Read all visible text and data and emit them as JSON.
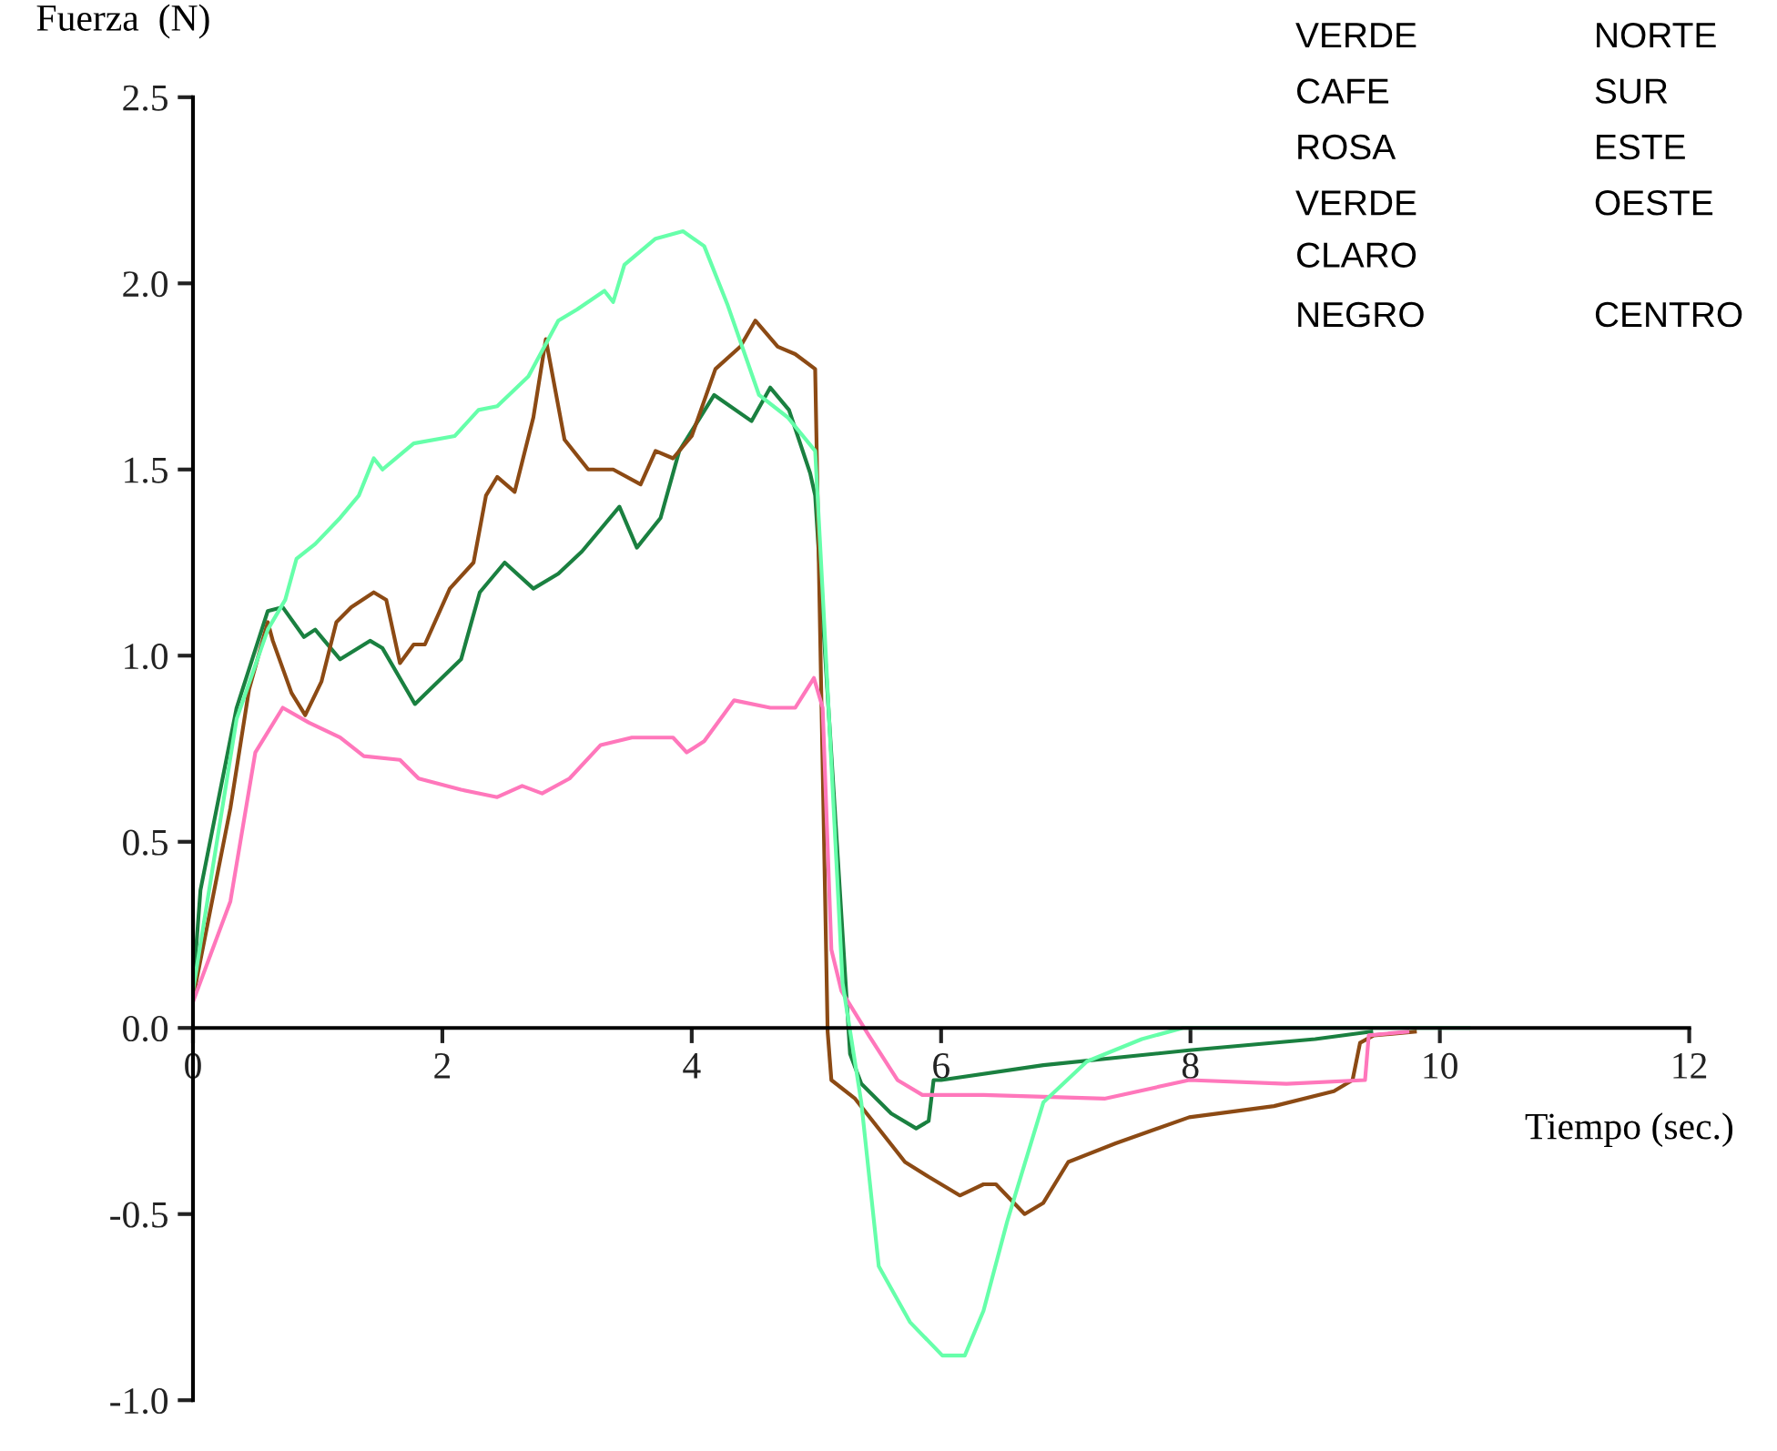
{
  "chart_data": {
    "type": "line",
    "xlabel": "Tiempo (sec.)",
    "ylabel": "Fuerza  (N)",
    "xlim": [
      0,
      12
    ],
    "ylim": [
      -1.0,
      2.5
    ],
    "xticks": [
      0,
      2,
      4,
      6,
      8,
      10,
      12
    ],
    "yticks": [
      {
        "value": -1.0,
        "label": "-1.0"
      },
      {
        "value": -0.5,
        "label": "-0.5"
      },
      {
        "value": 0.0,
        "label": "0.0"
      },
      {
        "value": 0.5,
        "label": "0.5"
      },
      {
        "value": 1.0,
        "label": "1.0"
      },
      {
        "value": 1.5,
        "label": "1.5"
      },
      {
        "value": 2.0,
        "label": "2.0"
      },
      {
        "value": 2.5,
        "label": "2.5"
      }
    ],
    "grid": false,
    "legend": false,
    "marker": "none",
    "line_style": "solid",
    "annotations": [
      "VERDE",
      "NORTE",
      "CAFE",
      "SUR",
      "ROSA",
      "ESTE",
      "VERDE\nCLARO",
      "OESTE",
      "NEGRO",
      "CENTRO"
    ],
    "series": [
      {
        "color": "#1a8040",
        "x": [
          0,
          0.06,
          0.35,
          0.6,
          0.72,
          0.89,
          0.98,
          1.18,
          1.42,
          1.52,
          1.78,
          2.15,
          2.3,
          2.5,
          2.73,
          2.93,
          3.12,
          3.42,
          3.56,
          3.75,
          3.9,
          4.18,
          4.48,
          4.63,
          4.78,
          4.95,
          4.99,
          5.27,
          5.36,
          5.6,
          5.8,
          5.9,
          5.94,
          6.0,
          6.82,
          7.99,
          9.0,
          9.45
        ],
        "values": [
          0.1,
          0.37,
          0.86,
          1.12,
          1.13,
          1.05,
          1.07,
          0.99,
          1.04,
          1.02,
          0.87,
          0.99,
          1.17,
          1.25,
          1.18,
          1.22,
          1.28,
          1.4,
          1.29,
          1.37,
          1.55,
          1.7,
          1.63,
          1.72,
          1.66,
          1.49,
          1.43,
          -0.07,
          -0.15,
          -0.23,
          -0.27,
          -0.25,
          -0.14,
          -0.14,
          -0.1,
          -0.06,
          -0.03,
          -0.01
        ]
      },
      {
        "color": "#8c4a14",
        "x": [
          0,
          0.3,
          0.45,
          0.6,
          0.64,
          0.79,
          0.9,
          1.03,
          1.15,
          1.27,
          1.45,
          1.55,
          1.66,
          1.77,
          1.86,
          2.06,
          2.25,
          2.35,
          2.44,
          2.58,
          2.73,
          2.83,
          2.98,
          3.17,
          3.37,
          3.59,
          3.71,
          3.85,
          4.0,
          4.19,
          4.39,
          4.51,
          4.69,
          4.83,
          4.99,
          5.09,
          5.12,
          5.31,
          5.71,
          5.9,
          6.15,
          6.34,
          6.44,
          6.67,
          6.82,
          7.02,
          7.4,
          7.99,
          8.67,
          9.15,
          9.3,
          9.36,
          9.47,
          9.8
        ],
        "values": [
          0.08,
          0.59,
          0.91,
          1.09,
          1.04,
          0.9,
          0.84,
          0.93,
          1.09,
          1.13,
          1.17,
          1.15,
          0.98,
          1.03,
          1.03,
          1.18,
          1.25,
          1.43,
          1.48,
          1.44,
          1.64,
          1.85,
          1.58,
          1.5,
          1.5,
          1.46,
          1.55,
          1.53,
          1.59,
          1.77,
          1.83,
          1.9,
          1.83,
          1.81,
          1.77,
          -0.01,
          -0.14,
          -0.19,
          -0.36,
          -0.4,
          -0.45,
          -0.42,
          -0.42,
          -0.5,
          -0.47,
          -0.36,
          -0.31,
          -0.24,
          -0.21,
          -0.17,
          -0.14,
          -0.04,
          -0.02,
          -0.01
        ]
      },
      {
        "color": "#ff77bb",
        "x": [
          0,
          0.3,
          0.5,
          0.72,
          0.93,
          1.18,
          1.37,
          1.66,
          1.81,
          2.15,
          2.44,
          2.64,
          2.8,
          3.02,
          3.27,
          3.52,
          3.85,
          3.96,
          4.1,
          4.34,
          4.63,
          4.83,
          4.98,
          5.05,
          5.12,
          5.2,
          5.42,
          5.65,
          5.85,
          6.34,
          7.31,
          7.99,
          8.77,
          9.4,
          9.43,
          9.74
        ],
        "values": [
          0.07,
          0.34,
          0.74,
          0.86,
          0.82,
          0.78,
          0.73,
          0.72,
          0.67,
          0.64,
          0.62,
          0.65,
          0.63,
          0.67,
          0.76,
          0.78,
          0.78,
          0.74,
          0.77,
          0.88,
          0.86,
          0.86,
          0.94,
          0.86,
          0.21,
          0.1,
          -0.02,
          -0.14,
          -0.18,
          -0.18,
          -0.19,
          -0.14,
          -0.15,
          -0.14,
          -0.02,
          -0.01
        ]
      },
      {
        "color": "#66ffaa",
        "x": [
          0,
          0.35,
          0.6,
          0.74,
          0.83,
          0.98,
          1.18,
          1.33,
          1.45,
          1.52,
          1.77,
          2.1,
          2.29,
          2.44,
          2.69,
          2.93,
          3.08,
          3.3,
          3.37,
          3.46,
          3.71,
          3.93,
          4.1,
          4.29,
          4.54,
          4.77,
          4.99,
          5.05,
          5.21,
          5.36,
          5.5,
          5.75,
          6.01,
          6.19,
          6.34,
          6.53,
          6.82,
          7.17,
          7.61,
          7.94,
          10.23
        ],
        "values": [
          0.1,
          0.83,
          1.07,
          1.15,
          1.26,
          1.3,
          1.37,
          1.43,
          1.53,
          1.5,
          1.57,
          1.59,
          1.66,
          1.67,
          1.75,
          1.9,
          1.93,
          1.98,
          1.95,
          2.05,
          2.12,
          2.14,
          2.1,
          1.94,
          1.7,
          1.64,
          1.55,
          1.17,
          0.12,
          -0.2,
          -0.64,
          -0.79,
          -0.88,
          -0.88,
          -0.76,
          -0.52,
          -0.2,
          -0.09,
          -0.03,
          0.0,
          0.0
        ]
      }
    ]
  }
}
